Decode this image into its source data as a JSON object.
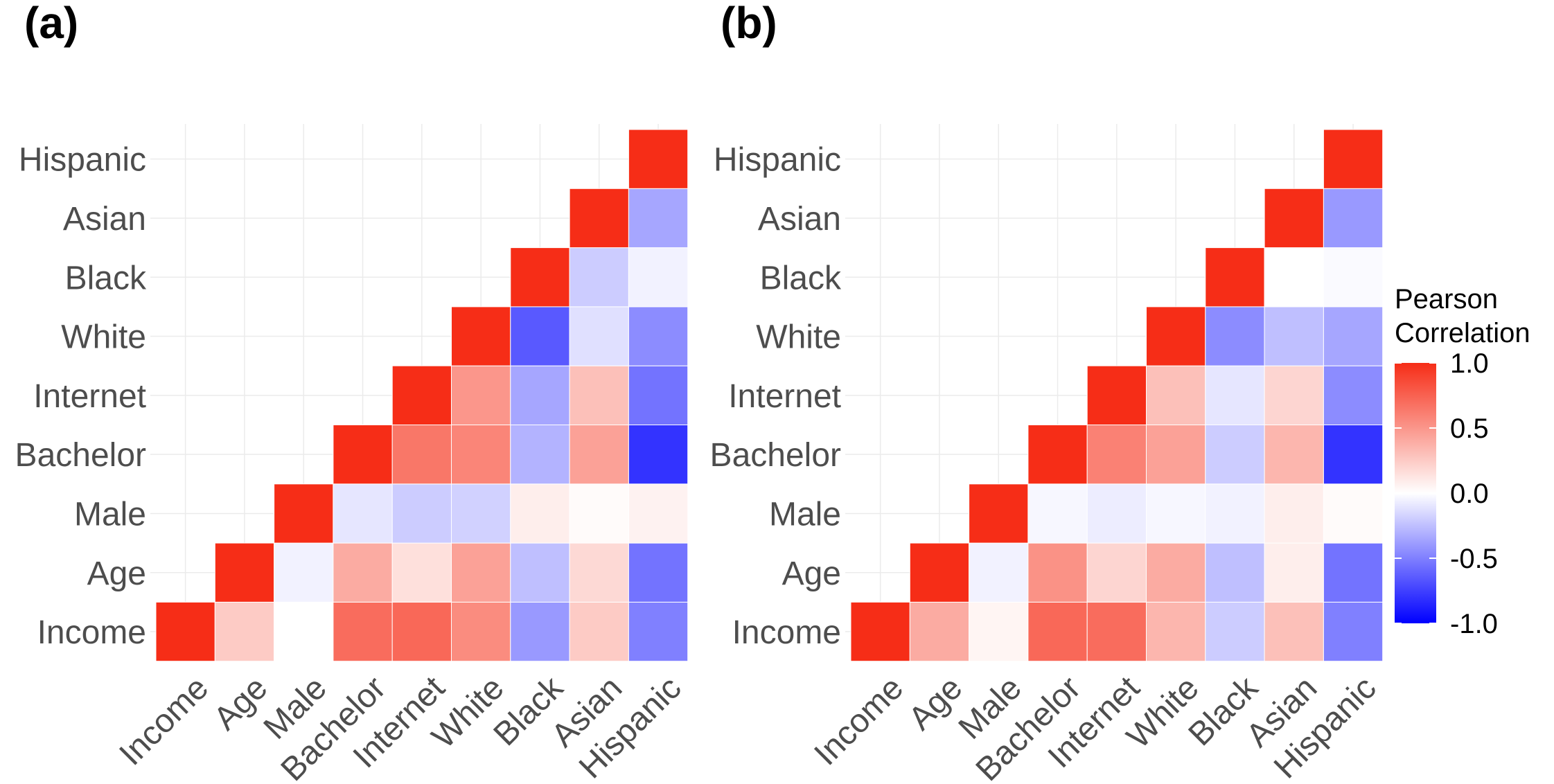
{
  "chart_data": [
    {
      "type": "heatmap",
      "panel_label": "(a)",
      "variables": [
        "Income",
        "Age",
        "Male",
        "Bachelor",
        "Internet",
        "White",
        "Black",
        "Asian",
        "Hispanic"
      ],
      "matrix_lower_triangle": [
        [
          1.0
        ],
        [
          0.25,
          1.0
        ],
        [
          0.0,
          -0.05,
          1.0
        ],
        [
          0.7,
          0.4,
          -0.1,
          1.0
        ],
        [
          0.72,
          0.15,
          -0.2,
          0.65,
          1.0
        ],
        [
          0.55,
          0.45,
          -0.18,
          0.58,
          0.5,
          1.0
        ],
        [
          -0.4,
          -0.25,
          0.08,
          -0.3,
          -0.35,
          -0.65,
          1.0
        ],
        [
          0.25,
          0.18,
          0.02,
          0.45,
          0.3,
          -0.12,
          -0.2,
          1.0
        ],
        [
          -0.5,
          -0.55,
          0.06,
          -0.8,
          -0.55,
          -0.45,
          -0.05,
          -0.35,
          1.0
        ]
      ]
    },
    {
      "type": "heatmap",
      "panel_label": "(b)",
      "variables": [
        "Income",
        "Age",
        "Male",
        "Bachelor",
        "Internet",
        "White",
        "Black",
        "Asian",
        "Hispanic"
      ],
      "matrix_lower_triangle": [
        [
          1.0
        ],
        [
          0.4,
          1.0
        ],
        [
          0.05,
          -0.05,
          1.0
        ],
        [
          0.72,
          0.52,
          -0.03,
          1.0
        ],
        [
          0.7,
          0.2,
          -0.07,
          0.6,
          1.0
        ],
        [
          0.35,
          0.4,
          -0.03,
          0.45,
          0.3,
          1.0
        ],
        [
          -0.2,
          -0.25,
          -0.05,
          -0.2,
          -0.1,
          -0.45,
          1.0
        ],
        [
          0.3,
          0.08,
          0.08,
          0.35,
          0.2,
          -0.25,
          0.0,
          1.0
        ],
        [
          -0.5,
          -0.55,
          0.02,
          -0.8,
          -0.45,
          -0.35,
          -0.02,
          -0.4,
          1.0
        ]
      ]
    }
  ],
  "legend": {
    "title_line1": "Pearson",
    "title_line2": "Correlation",
    "ticks": [
      "1.0",
      "0.5",
      "0.0",
      "-0.5",
      "-1.0"
    ],
    "tick_values": [
      1.0,
      0.5,
      0.0,
      -0.5,
      -1.0
    ]
  },
  "colors": {
    "high": "#f62d17",
    "mid": "#ffffff",
    "low": "#0000ff"
  }
}
